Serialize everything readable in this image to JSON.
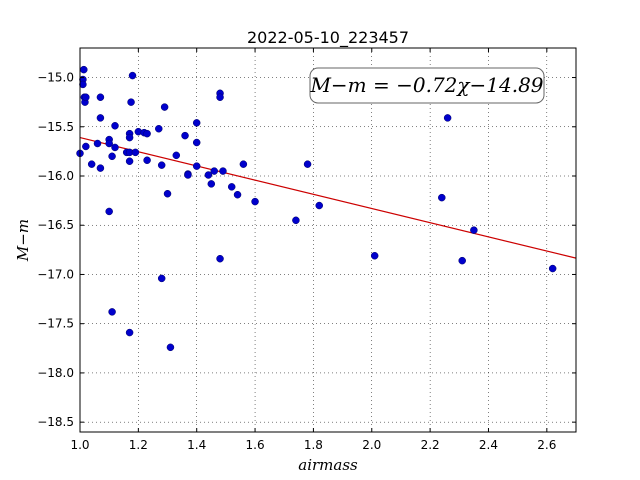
{
  "chart_data": {
    "type": "scatter",
    "title": "2022-05-10_223457",
    "xlabel": "airmass",
    "ylabel": "M−m",
    "xlim": [
      1.0,
      2.7
    ],
    "ylim": [
      -18.6,
      -14.7
    ],
    "y_inverted": true,
    "grid": true,
    "xticks": [
      1.0,
      1.2,
      1.4,
      1.6,
      1.8,
      2.0,
      2.2,
      2.4,
      2.6
    ],
    "xtick_labels": [
      "1.0",
      "1.2",
      "1.4",
      "1.6",
      "1.8",
      "2.0",
      "2.2",
      "2.4",
      "2.6"
    ],
    "yticks": [
      -15.0,
      -15.5,
      -16.0,
      -16.5,
      -17.0,
      -17.5,
      -18.0,
      -18.5
    ],
    "ytick_labels": [
      "−15.0",
      "−15.5",
      "−16.0",
      "−16.5",
      "−17.0",
      "−17.5",
      "−18.0",
      "−18.5"
    ],
    "annotation": "M−m = −0.72χ−14.89",
    "fit": {
      "slope": -0.72,
      "intercept": -14.89,
      "color": "#cc0000"
    },
    "point_color": "#0000cc",
    "points": [
      [
        1.0,
        -15.77
      ],
      [
        1.01,
        -15.02
      ],
      [
        1.01,
        -15.07
      ],
      [
        1.013,
        -14.92
      ],
      [
        1.015,
        -15.2
      ],
      [
        1.017,
        -15.25
      ],
      [
        1.02,
        -15.2
      ],
      [
        1.02,
        -15.7
      ],
      [
        1.04,
        -15.88
      ],
      [
        1.06,
        -15.67
      ],
      [
        1.07,
        -15.2
      ],
      [
        1.07,
        -15.41
      ],
      [
        1.07,
        -15.92
      ],
      [
        1.1,
        -15.63
      ],
      [
        1.1,
        -15.67
      ],
      [
        1.1,
        -16.36
      ],
      [
        1.11,
        -15.8
      ],
      [
        1.11,
        -17.38
      ],
      [
        1.12,
        -15.49
      ],
      [
        1.12,
        -15.71
      ],
      [
        1.16,
        -15.76
      ],
      [
        1.17,
        -15.57
      ],
      [
        1.17,
        -15.61
      ],
      [
        1.17,
        -15.76
      ],
      [
        1.17,
        -15.85
      ],
      [
        1.17,
        -17.59
      ],
      [
        1.175,
        -15.25
      ],
      [
        1.18,
        -14.98
      ],
      [
        1.19,
        -15.76
      ],
      [
        1.2,
        -15.55
      ],
      [
        1.22,
        -15.56
      ],
      [
        1.23,
        -15.57
      ],
      [
        1.23,
        -15.84
      ],
      [
        1.27,
        -15.52
      ],
      [
        1.28,
        -15.89
      ],
      [
        1.28,
        -17.04
      ],
      [
        1.29,
        -15.3
      ],
      [
        1.3,
        -16.18
      ],
      [
        1.31,
        -17.74
      ],
      [
        1.33,
        -15.79
      ],
      [
        1.36,
        -15.59
      ],
      [
        1.37,
        -15.98
      ],
      [
        1.37,
        -15.99
      ],
      [
        1.4,
        -15.46
      ],
      [
        1.4,
        -15.66
      ],
      [
        1.4,
        -15.9
      ],
      [
        1.44,
        -15.99
      ],
      [
        1.45,
        -16.08
      ],
      [
        1.46,
        -15.95
      ],
      [
        1.48,
        -15.16
      ],
      [
        1.48,
        -15.2
      ],
      [
        1.48,
        -16.84
      ],
      [
        1.49,
        -15.95
      ],
      [
        1.52,
        -16.11
      ],
      [
        1.54,
        -16.19
      ],
      [
        1.56,
        -15.88
      ],
      [
        1.6,
        -16.26
      ],
      [
        1.74,
        -16.45
      ],
      [
        1.78,
        -15.88
      ],
      [
        1.82,
        -16.3
      ],
      [
        2.01,
        -16.81
      ],
      [
        2.24,
        -16.22
      ],
      [
        2.26,
        -15.41
      ],
      [
        2.31,
        -16.86
      ],
      [
        2.35,
        -16.55
      ],
      [
        2.62,
        -16.94
      ]
    ]
  }
}
